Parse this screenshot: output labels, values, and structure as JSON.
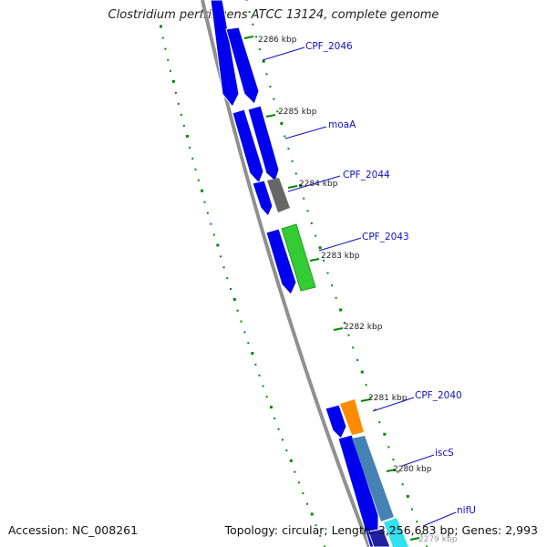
{
  "map_title": "Clostridium perfringens ATCC 13124, complete genome",
  "accession": "Accession: NC_008261",
  "topology": "Topology: circular; Length: 3,256,683 bp; Genes: 2,993",
  "tick_labels": [
    "2286 kbp",
    "2285 kbp",
    "2284 kbp",
    "2283 kbp",
    "2282 kbp",
    "2281 kbp",
    "2280 kbp",
    "2279 kbp"
  ],
  "gene_labels": [
    "CPF_2046",
    "moaA",
    "CPF_2044",
    "CPF_2043",
    "CPF_2040",
    "iscS",
    "nifU"
  ],
  "colors": {
    "backbone": "#909090",
    "cds": "#0000ee",
    "trna_grey": "#666666",
    "green": "#33cc33",
    "orange": "#ff8c00",
    "steel": "#4682b4",
    "cyan": "#33e0f0",
    "gc_skew": "#008800",
    "label": "#1010c0"
  }
}
